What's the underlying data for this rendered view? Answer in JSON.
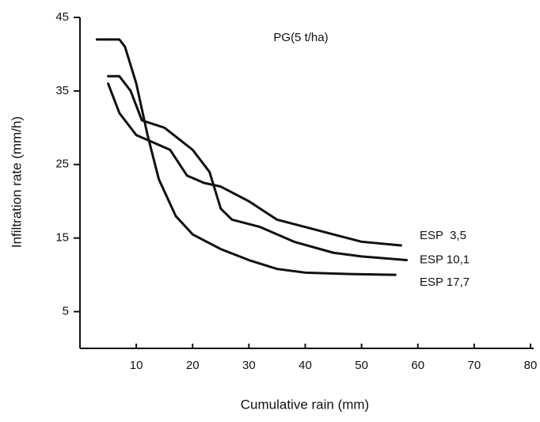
{
  "chart_data": {
    "type": "line",
    "title": "PG(5 t/ha)",
    "x_label": "Cumulative rain (mm)",
    "y_label": "Infiltration rate (mm/h)",
    "xlim": [
      0,
      80
    ],
    "xticks": [
      10,
      20,
      30,
      40,
      50,
      60,
      70,
      80
    ],
    "ylim": [
      0,
      45
    ],
    "yticks": [
      5,
      15,
      25,
      35,
      45
    ],
    "grid": false,
    "series": [
      {
        "name": "ESP  3,5",
        "color": "#111111",
        "x": [
          5,
          7,
          10,
          13,
          16,
          19,
          22,
          25,
          30,
          35,
          40,
          45,
          50,
          57
        ],
        "values": [
          36,
          32,
          29,
          28,
          27,
          23.5,
          22.5,
          22,
          20,
          17.5,
          16.5,
          15.5,
          14.5,
          14
        ]
      },
      {
        "name": "ESP 10,1",
        "color": "#111111",
        "x": [
          5,
          7,
          9,
          11,
          15,
          20,
          23,
          25,
          27,
          32,
          38,
          45,
          50,
          58
        ],
        "values": [
          37,
          37,
          35,
          31,
          30,
          27,
          24,
          19,
          17.5,
          16.5,
          14.5,
          13,
          12.5,
          12
        ]
      },
      {
        "name": "ESP 17,7",
        "color": "#111111",
        "x": [
          3,
          7,
          8,
          10,
          12,
          14,
          17,
          20,
          25,
          30,
          35,
          40,
          48,
          56
        ],
        "values": [
          42,
          42,
          41,
          36,
          29,
          23,
          18,
          15.5,
          13.5,
          12,
          10.8,
          10.3,
          10.1,
          10
        ]
      }
    ]
  }
}
